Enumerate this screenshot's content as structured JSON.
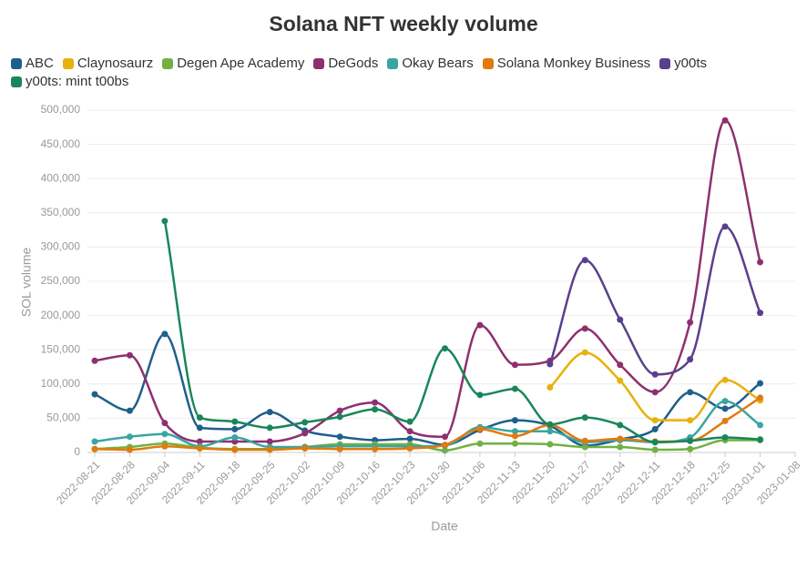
{
  "chart_data": {
    "type": "line",
    "title": "Solana NFT weekly volume",
    "x_label": "Date",
    "y_label": "SOL volume",
    "x": [
      "2022-08-21",
      "2022-08-28",
      "2022-09-04",
      "2022-09-11",
      "2022-09-18",
      "2022-09-25",
      "2022-10-02",
      "2022-10-09",
      "2022-10-16",
      "2022-10-23",
      "2022-10-30",
      "2022-11-06",
      "2022-11-13",
      "2022-11-20",
      "2022-11-27",
      "2022-12-04",
      "2022-12-11",
      "2022-12-18",
      "2022-12-25",
      "2023-01-01"
    ],
    "xlim": [
      "2022-08-21",
      "2023-01-08"
    ],
    "xticks": [
      "2022-08-21",
      "2022-08-28",
      "2022-09-04",
      "2022-09-11",
      "2022-09-18",
      "2022-09-25",
      "2022-10-02",
      "2022-10-09",
      "2022-10-16",
      "2022-10-23",
      "2022-10-30",
      "2022-11-06",
      "2022-11-13",
      "2022-11-20",
      "2022-11-27",
      "2022-12-04",
      "2022-12-11",
      "2022-12-18",
      "2022-12-25",
      "2023-01-01",
      "2023-01-08"
    ],
    "ylim": [
      0,
      500000
    ],
    "yticks": [
      0,
      {
        "value": 50000,
        "label": "50,000"
      },
      {
        "value": 100000,
        "label": "100,000"
      },
      {
        "value": 150000,
        "label": "150,000"
      },
      {
        "value": 200000,
        "label": "200,000"
      },
      {
        "value": 250000,
        "label": "250,000"
      },
      {
        "value": 300000,
        "label": "300,000"
      },
      {
        "value": 350000,
        "label": "350,000"
      },
      {
        "value": 400000,
        "label": "400,000"
      },
      {
        "value": 450000,
        "label": "450,000"
      },
      {
        "value": 500000,
        "label": "500,000"
      }
    ],
    "grid": true,
    "series": [
      {
        "name": "ABC",
        "color": "#1f5f8b",
        "values": [
          85000,
          61000,
          173000,
          36000,
          34000,
          59000,
          32000,
          23000,
          18000,
          20000,
          11000,
          33000,
          47000,
          39000,
          10000,
          19000,
          34000,
          88000,
          64000,
          101000
        ]
      },
      {
        "name": "Claynosaurz",
        "color": "#e8b10c",
        "values": [
          null,
          null,
          null,
          null,
          null,
          null,
          null,
          null,
          null,
          null,
          null,
          null,
          null,
          95000,
          146000,
          105000,
          47000,
          47000,
          106000,
          76000
        ]
      },
      {
        "name": "Degen Ape Academy",
        "color": "#72b043",
        "values": [
          5000,
          8000,
          13000,
          7000,
          5000,
          5000,
          8000,
          12000,
          12000,
          12000,
          3000,
          13000,
          13000,
          12000,
          8000,
          8000,
          4000,
          5000,
          18000,
          18000
        ]
      },
      {
        "name": "DeGods",
        "color": "#8e3070",
        "values": [
          134000,
          142000,
          43000,
          16000,
          16000,
          16000,
          28000,
          61000,
          73000,
          31000,
          23000,
          186000,
          128000,
          134000,
          181000,
          128000,
          88000,
          190000,
          485000,
          278000
        ]
      },
      {
        "name": "Okay Bears",
        "color": "#3aa5a3",
        "values": [
          16000,
          23000,
          27000,
          9000,
          22000,
          8000,
          8000,
          9000,
          9000,
          9000,
          10000,
          37000,
          31000,
          31000,
          15000,
          18000,
          15000,
          22000,
          75000,
          40000
        ]
      },
      {
        "name": "Solana Monkey Business",
        "color": "#e07b0c",
        "values": [
          5000,
          4000,
          9000,
          6000,
          4000,
          4000,
          6000,
          5000,
          5000,
          6000,
          11000,
          34000,
          24000,
          40000,
          17000,
          20000,
          16000,
          17000,
          46000,
          80000
        ]
      },
      {
        "name": "y00ts",
        "color": "#5a3f8d",
        "values": [
          null,
          null,
          null,
          null,
          null,
          null,
          null,
          null,
          null,
          null,
          null,
          null,
          null,
          129000,
          281000,
          194000,
          114000,
          136000,
          330000,
          204000
        ]
      },
      {
        "name": "y00ts: mint t00bs",
        "color": "#198659",
        "values": [
          null,
          null,
          338000,
          51000,
          45000,
          36000,
          44000,
          52000,
          63000,
          45000,
          152000,
          84000,
          93000,
          41000,
          51000,
          40000,
          15000,
          17000,
          22000,
          19000
        ]
      }
    ]
  }
}
